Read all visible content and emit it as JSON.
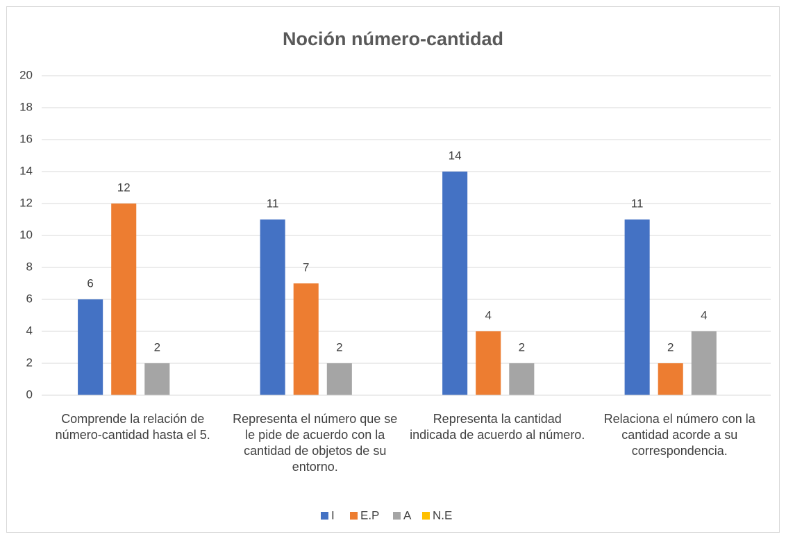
{
  "chart_data": {
    "type": "bar",
    "title": "Noción número-cantidad",
    "categories": [
      "Comprende la relación de número-cantidad hasta el 5.",
      "Representa el número que se le pide de acuerdo con la cantidad de objetos de su entorno.",
      "Representa la cantidad indicada de acuerdo al número.",
      "Relaciona el número con la cantidad acorde a su correspondencia."
    ],
    "series": [
      {
        "name": "I",
        "color": "#4472c4",
        "values": [
          6,
          11,
          14,
          11
        ]
      },
      {
        "name": "E.P",
        "color": "#ed7d31",
        "values": [
          12,
          7,
          4,
          2
        ]
      },
      {
        "name": "A",
        "color": "#a5a5a5",
        "values": [
          2,
          2,
          2,
          4
        ]
      },
      {
        "name": "N.E",
        "color": "#ffc000",
        "values": [
          null,
          null,
          null,
          null
        ]
      }
    ],
    "ylim": [
      0,
      20
    ],
    "yticks": [
      0,
      2,
      4,
      6,
      8,
      10,
      12,
      14,
      16,
      18,
      20
    ],
    "grid": true,
    "legend": "bottom"
  }
}
